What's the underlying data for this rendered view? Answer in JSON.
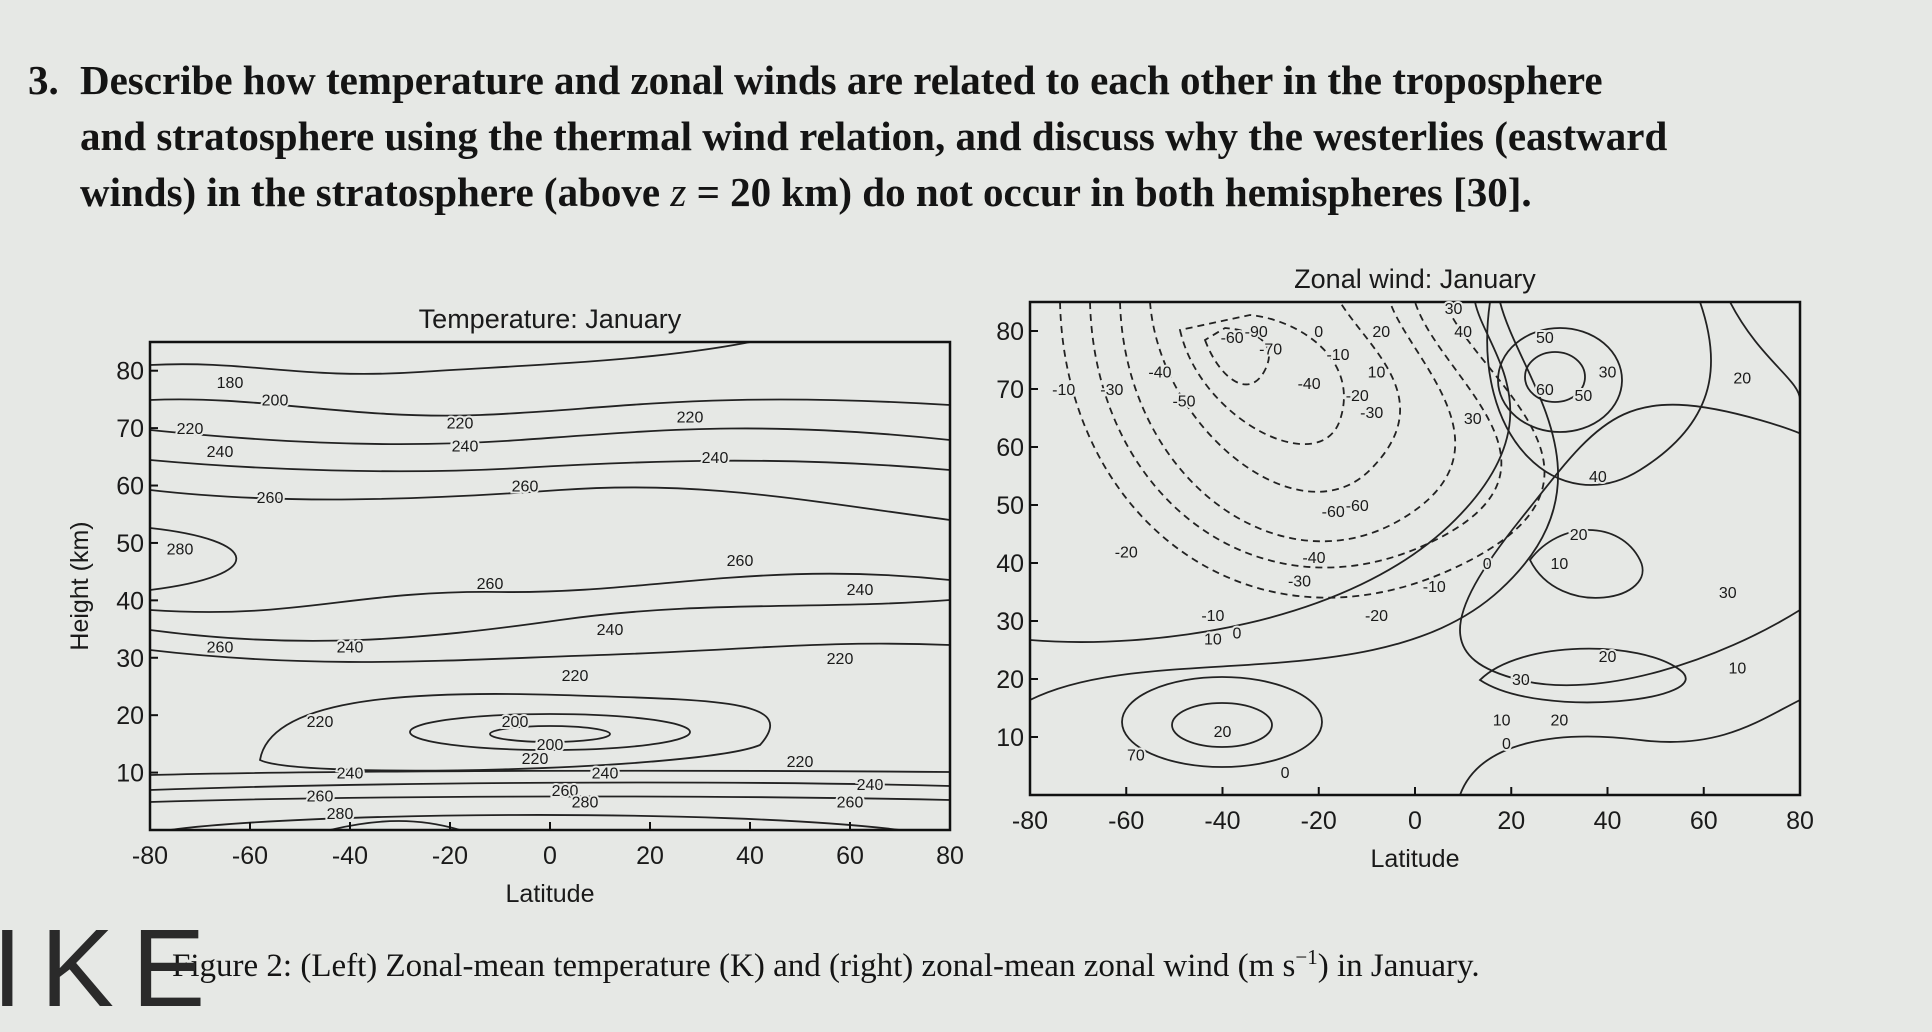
{
  "question": {
    "number": "3.",
    "lines": [
      "Describe how temperature and zonal winds are related to each other in the troposphere",
      "and stratosphere using the thermal wind relation, and discuss why the westerlies (eastward"
    ],
    "last_line": [
      "winds) in the stratosphere (above ",
      "z",
      " = 20 km) do not occur in both hemispheres [30]."
    ]
  },
  "figure": {
    "left": {
      "title": "Temperature: January",
      "xlabel": "Latitude",
      "ylabel": "Height (km)",
      "xlim": [
        -80,
        80
      ],
      "ylim": [
        0,
        85
      ],
      "xticks": [
        -80,
        -60,
        -40,
        -20,
        0,
        20,
        40,
        60,
        80
      ],
      "yticks": [
        10,
        20,
        30,
        40,
        50,
        60,
        70,
        80
      ],
      "contour_labels": [
        "180",
        "200",
        "220",
        "240",
        "260",
        "280",
        "260",
        "240",
        "220",
        "220",
        "240",
        "260",
        "220",
        "240",
        "260",
        "260",
        "240",
        "220",
        "240",
        "220",
        "200",
        "200",
        "220",
        "240",
        "260",
        "280",
        "240",
        "260",
        "280",
        "220",
        "240",
        "260"
      ]
    },
    "right": {
      "title": "Zonal wind: January",
      "xlabel": "Latitude",
      "xlim": [
        -80,
        80
      ],
      "ylim": [
        0,
        85
      ],
      "xticks": [
        -80,
        -60,
        -40,
        -20,
        0,
        20,
        40,
        60,
        80
      ],
      "yticks": [
        10,
        20,
        30,
        40,
        50,
        60,
        70,
        80
      ],
      "contour_labels": [
        "-10",
        "-30",
        "-40",
        "-50",
        "-60",
        "-90",
        "-70",
        "0",
        "-10",
        "-40",
        "20",
        "10",
        "-20",
        "-30",
        "-60",
        "-60",
        "30",
        "40",
        "50",
        "60",
        "50",
        "30",
        "30",
        "40",
        "20",
        "10",
        "30",
        "20",
        "30",
        "20",
        "10",
        "0",
        "10",
        "20",
        "-20",
        "-40",
        "-30",
        "-20",
        "-10",
        "10",
        "0",
        "20",
        "70",
        "0",
        "-10",
        "0"
      ]
    }
  },
  "caption": [
    "Figure 2: (Left) Zonal-mean temperature (K) and (right) zonal-mean zonal wind (m s",
    "−1",
    ") in January."
  ],
  "margin_mark": "IKE"
}
